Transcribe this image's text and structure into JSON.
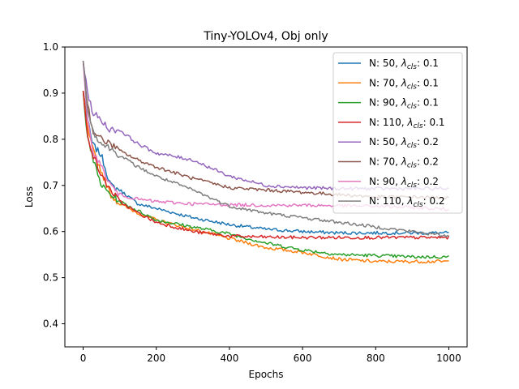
{
  "chart_data": {
    "type": "line",
    "title": "Tiny-YOLOv4, Obj only",
    "xlabel": "Epochs",
    "ylabel": "Loss",
    "xlim": [
      -50,
      1050
    ],
    "ylim": [
      0.35,
      1.0
    ],
    "xticks": [
      0,
      200,
      400,
      600,
      800,
      1000
    ],
    "yticks": [
      0.4,
      0.5,
      0.6,
      0.7,
      0.8,
      0.9,
      1.0
    ],
    "x": [
      0,
      10,
      25,
      50,
      75,
      100,
      150,
      200,
      300,
      400,
      500,
      600,
      700,
      800,
      900,
      1000
    ],
    "legend_position": "top-right",
    "series": [
      {
        "name": "N: 50, λcls: 0.1",
        "label_main": "N: 50, ",
        "label_sub": "cls",
        "label_tail": ": 0.1",
        "color": "#1f77b4",
        "values": [
          0.905,
          0.85,
          0.79,
          0.765,
          0.7,
          0.69,
          0.66,
          0.65,
          0.63,
          0.615,
          0.605,
          0.6,
          0.597,
          0.597,
          0.597,
          0.597
        ]
      },
      {
        "name": "N: 70, λcls: 0.1",
        "label_main": "N: 70, ",
        "label_sub": "cls",
        "label_tail": ": 0.1",
        "color": "#ff7f0e",
        "values": [
          0.905,
          0.83,
          0.78,
          0.73,
          0.68,
          0.66,
          0.64,
          0.625,
          0.605,
          0.585,
          0.565,
          0.555,
          0.54,
          0.535,
          0.535,
          0.535
        ]
      },
      {
        "name": "N: 90, λcls: 0.1",
        "label_main": "N: 90, ",
        "label_sub": "cls",
        "label_tail": ": 0.1",
        "color": "#2ca02c",
        "values": [
          0.905,
          0.82,
          0.76,
          0.7,
          0.68,
          0.665,
          0.645,
          0.625,
          0.61,
          0.595,
          0.575,
          0.56,
          0.55,
          0.548,
          0.545,
          0.545
        ]
      },
      {
        "name": "N: 110, λcls: 0.1",
        "label_main": "N: 110, ",
        "label_sub": "cls",
        "label_tail": ": 0.1",
        "color": "#d62728",
        "values": [
          0.905,
          0.82,
          0.77,
          0.72,
          0.69,
          0.665,
          0.64,
          0.62,
          0.6,
          0.59,
          0.588,
          0.587,
          0.587,
          0.587,
          0.587,
          0.587
        ]
      },
      {
        "name": "N: 50, λcls: 0.2",
        "label_main": "N: 50, ",
        "label_sub": "cls",
        "label_tail": ": 0.2",
        "color": "#9467bd",
        "values": [
          0.97,
          0.91,
          0.86,
          0.84,
          0.82,
          0.82,
          0.79,
          0.77,
          0.755,
          0.72,
          0.7,
          0.695,
          0.693,
          0.693,
          0.693,
          0.693
        ]
      },
      {
        "name": "N: 70, λcls: 0.2",
        "label_main": "N: 70, ",
        "label_sub": "cls",
        "label_tail": ": 0.2",
        "color": "#8c564b",
        "values": [
          0.97,
          0.89,
          0.82,
          0.8,
          0.79,
          0.775,
          0.755,
          0.74,
          0.715,
          0.695,
          0.69,
          0.685,
          0.68,
          0.675,
          0.675,
          0.673
        ]
      },
      {
        "name": "N: 90, λcls: 0.2",
        "label_main": "N: 90, ",
        "label_sub": "cls",
        "label_tail": ": 0.2",
        "color": "#e377c2",
        "values": [
          0.97,
          0.85,
          0.78,
          0.74,
          0.7,
          0.68,
          0.67,
          0.665,
          0.66,
          0.658,
          0.657,
          0.657,
          0.656,
          0.655,
          0.652,
          0.648
        ]
      },
      {
        "name": "N: 110, λcls: 0.2",
        "label_main": "N: 110, ",
        "label_sub": "cls",
        "label_tail": ": 0.2",
        "color": "#7f7f7f",
        "values": [
          0.97,
          0.88,
          0.82,
          0.79,
          0.78,
          0.765,
          0.74,
          0.72,
          0.69,
          0.655,
          0.64,
          0.63,
          0.62,
          0.61,
          0.6,
          0.59
        ]
      }
    ]
  }
}
